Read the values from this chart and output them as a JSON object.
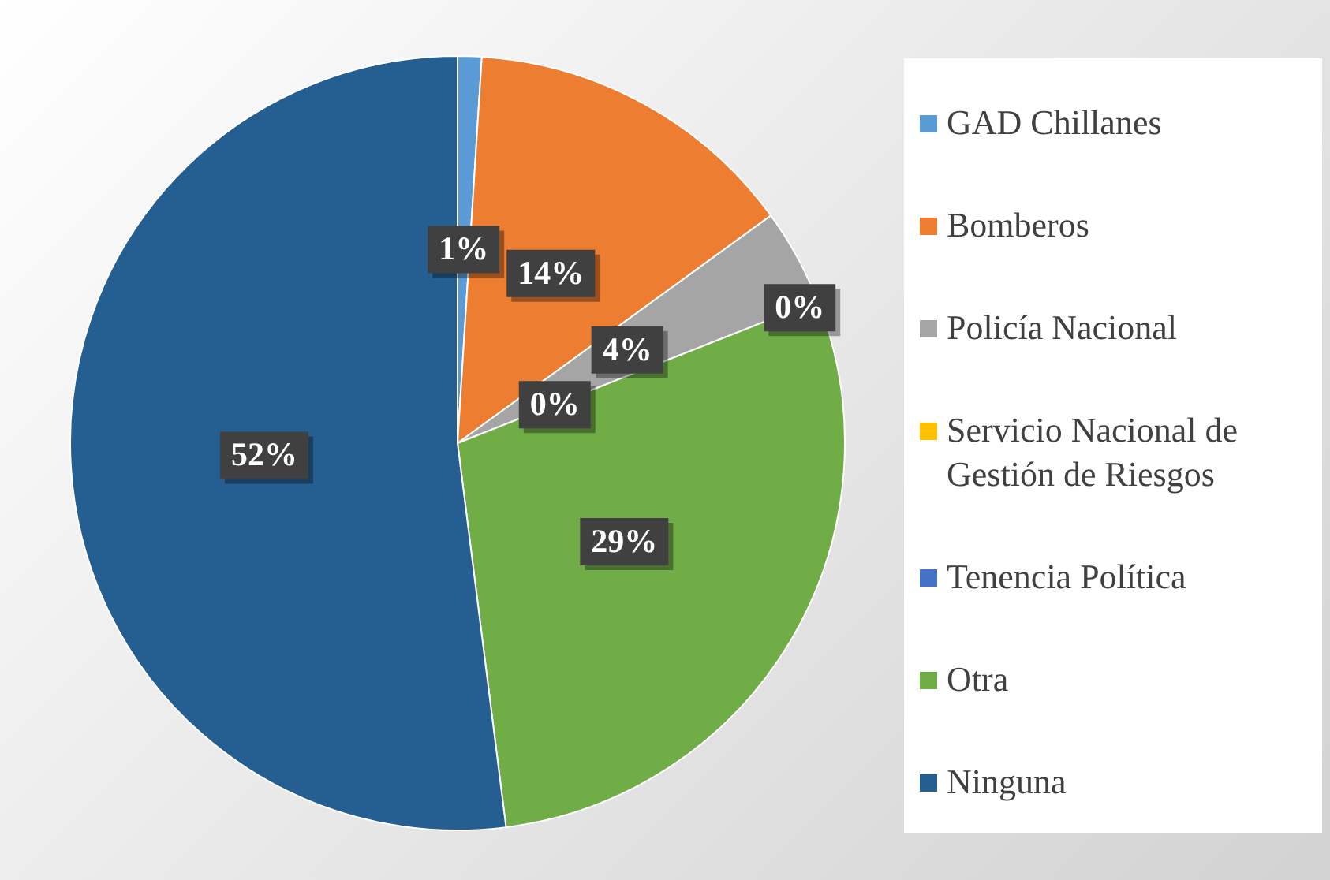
{
  "chart_data": {
    "type": "pie",
    "categories": [
      "GAD Chillanes",
      "Bomberos",
      "Policía Nacional",
      "Servicio Nacional de Gestión de Riesgos",
      "Tenencia Política",
      "Otra",
      "Ninguna"
    ],
    "values": [
      1,
      14,
      4,
      0,
      0,
      29,
      52
    ],
    "colors": [
      "#5b9bd5",
      "#ed7d31",
      "#a5a5a5",
      "#ffc000",
      "#4472c4",
      "#70ad47",
      "#255e91"
    ],
    "value_labels": [
      "1%",
      "14%",
      "4%",
      "0%",
      "0%",
      "29%",
      "52%"
    ],
    "legend": "right"
  }
}
